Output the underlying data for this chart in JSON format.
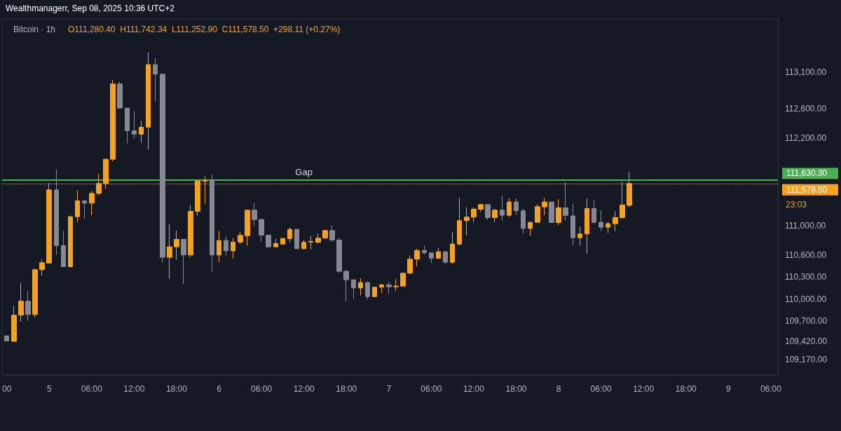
{
  "chart_data": {
    "type": "candlestick",
    "title": "Bitcoin · 1h",
    "subtitle": "O111,280.40  H111,742.34  L111,252.90  C111,578.50  +298.11 (+0.27%)",
    "annotations": [
      "Wealthmanagerr, Sep 08, 2025 10:36 UTC+2",
      "23:03",
      {
        "text": "Gap",
        "x": "2025-09-06T12:00",
        "y": 111630.3
      }
    ],
    "x": [
      "2025-09-04T18:00",
      "2025-09-04T19:00",
      "2025-09-04T20:00",
      "2025-09-04T21:00",
      "2025-09-04T22:00",
      "2025-09-04T23:00",
      "2025-09-05T00:00",
      "2025-09-05T01:00",
      "2025-09-05T02:00",
      "2025-09-05T03:00",
      "2025-09-05T04:00",
      "2025-09-05T05:00",
      "2025-09-05T06:00",
      "2025-09-05T07:00",
      "2025-09-05T08:00",
      "2025-09-05T09:00",
      "2025-09-05T10:00",
      "2025-09-05T11:00",
      "2025-09-05T12:00",
      "2025-09-05T13:00",
      "2025-09-05T14:00",
      "2025-09-05T15:00",
      "2025-09-05T16:00",
      "2025-09-05T17:00",
      "2025-09-05T18:00",
      "2025-09-05T19:00",
      "2025-09-05T20:00",
      "2025-09-05T21:00",
      "2025-09-05T22:00",
      "2025-09-05T23:00",
      "2025-09-06T00:00",
      "2025-09-06T01:00",
      "2025-09-06T02:00",
      "2025-09-06T03:00",
      "2025-09-06T04:00",
      "2025-09-06T05:00",
      "2025-09-06T06:00",
      "2025-09-06T07:00",
      "2025-09-06T08:00",
      "2025-09-06T09:00",
      "2025-09-06T10:00",
      "2025-09-06T11:00",
      "2025-09-06T12:00",
      "2025-09-06T13:00",
      "2025-09-06T14:00",
      "2025-09-06T15:00",
      "2025-09-06T16:00",
      "2025-09-06T17:00",
      "2025-09-06T18:00",
      "2025-09-06T19:00",
      "2025-09-06T20:00",
      "2025-09-06T21:00",
      "2025-09-06T22:00",
      "2025-09-06T23:00",
      "2025-09-07T00:00",
      "2025-09-07T01:00",
      "2025-09-07T02:00",
      "2025-09-07T03:00",
      "2025-09-07T04:00",
      "2025-09-07T05:00",
      "2025-09-07T06:00",
      "2025-09-07T07:00",
      "2025-09-07T08:00",
      "2025-09-07T09:00",
      "2025-09-07T10:00",
      "2025-09-07T11:00",
      "2025-09-07T12:00",
      "2025-09-07T13:00",
      "2025-09-07T14:00",
      "2025-09-07T15:00",
      "2025-09-07T16:00",
      "2025-09-07T17:00",
      "2025-09-07T18:00",
      "2025-09-07T19:00",
      "2025-09-07T20:00",
      "2025-09-07T21:00",
      "2025-09-07T22:00",
      "2025-09-07T23:00",
      "2025-09-08T00:00",
      "2025-09-08T01:00",
      "2025-09-08T02:00",
      "2025-09-08T03:00",
      "2025-09-08T04:00",
      "2025-09-08T05:00",
      "2025-09-08T06:00",
      "2025-09-08T07:00",
      "2025-09-08T08:00",
      "2025-09-08T09:00",
      "2025-09-08T10:00"
    ],
    "ohlc": [
      [
        109495,
        109500,
        109420,
        109425
      ],
      [
        109419,
        109905,
        109419,
        109777
      ],
      [
        109777,
        110218,
        109687,
        109968
      ],
      [
        109968,
        110102,
        109697,
        109786
      ],
      [
        109786,
        110410,
        109745,
        110400
      ],
      [
        110400,
        110543,
        110320,
        110495
      ],
      [
        110490,
        111588,
        110485,
        111492
      ],
      [
        111492,
        111773,
        110601,
        110729
      ],
      [
        110729,
        110933,
        110435,
        110441
      ],
      [
        110441,
        111135,
        110430,
        111125
      ],
      [
        111125,
        111486,
        111048,
        111342
      ],
      [
        111342,
        111345,
        111103,
        111310
      ],
      [
        111310,
        111476,
        111144,
        111444
      ],
      [
        111444,
        111710,
        111416,
        111579
      ],
      [
        111579,
        111915,
        111508,
        111911
      ],
      [
        111911,
        112997,
        111885,
        112940
      ],
      [
        112940,
        112972,
        112605,
        112611
      ],
      [
        112611,
        112611,
        112125,
        112301
      ],
      [
        112301,
        112572,
        112198,
        112253
      ],
      [
        112253,
        112435,
        112135,
        112349
      ],
      [
        112349,
        113371,
        112039,
        113205
      ],
      [
        113205,
        113298,
        112700,
        113074
      ],
      [
        113074,
        113080,
        110495,
        110569
      ],
      [
        110569,
        111023,
        110272,
        110713
      ],
      [
        110713,
        110933,
        110537,
        110815
      ],
      [
        110815,
        110815,
        110198,
        110601
      ],
      [
        110601,
        111285,
        110569,
        111198
      ],
      [
        111198,
        111620,
        111135,
        111614
      ],
      [
        111610,
        111678,
        111304,
        111620
      ],
      [
        111630,
        111700,
        110368,
        110601
      ],
      [
        110601,
        110927,
        110502,
        110799
      ],
      [
        110799,
        110857,
        110595,
        110658
      ],
      [
        110658,
        110831,
        110553,
        110777
      ],
      [
        110777,
        110920,
        110751,
        110869
      ],
      [
        110865,
        111220,
        110729,
        111214
      ],
      [
        111214,
        111310,
        111000,
        111087
      ],
      [
        111087,
        111087,
        110783,
        110873
      ],
      [
        110873,
        110873,
        110694,
        110713
      ],
      [
        110713,
        110821,
        110709,
        110758
      ],
      [
        110750,
        110831,
        110747,
        110828
      ],
      [
        110825,
        110975,
        110774,
        110952
      ],
      [
        110952,
        110955,
        110684,
        110687
      ],
      [
        110687,
        110806,
        110678,
        110774
      ],
      [
        110777,
        110863,
        110678,
        110786
      ],
      [
        110774,
        110895,
        110758,
        110831
      ],
      [
        110831,
        110943,
        110825,
        110936
      ],
      [
        110936,
        111004,
        110783,
        110806
      ],
      [
        110806,
        110837,
        110358,
        110377
      ],
      [
        110377,
        110400,
        109968,
        110262
      ],
      [
        110262,
        110262,
        109994,
        110150
      ],
      [
        110150,
        110281,
        110048,
        110224
      ],
      [
        110224,
        110240,
        109994,
        110032
      ],
      [
        110032,
        110165,
        110023,
        110160
      ],
      [
        110160,
        110208,
        110080,
        110192
      ],
      [
        110192,
        110233,
        110071,
        110166
      ],
      [
        110166,
        110272,
        110112,
        110176
      ],
      [
        110176,
        110358,
        110170,
        110352
      ],
      [
        110352,
        110591,
        110336,
        110543
      ],
      [
        110543,
        110687,
        110448,
        110662
      ],
      [
        110662,
        110729,
        110607,
        110630
      ],
      [
        110630,
        110630,
        110489,
        110556
      ],
      [
        110556,
        110697,
        110543,
        110646
      ],
      [
        110646,
        110646,
        110480,
        110502
      ],
      [
        110502,
        110911,
        110480,
        110751
      ],
      [
        110751,
        111381,
        110729,
        111071
      ],
      [
        111071,
        111253,
        110869,
        111119
      ],
      [
        111119,
        111253,
        111048,
        111227
      ],
      [
        111227,
        111294,
        111192,
        111291
      ],
      [
        111291,
        111294,
        111080,
        111112
      ],
      [
        111112,
        111230,
        111048,
        111214
      ],
      [
        111214,
        111413,
        111071,
        111144
      ],
      [
        111144,
        111381,
        111125,
        111326
      ],
      [
        111326,
        111374,
        111151,
        111205
      ],
      [
        111205,
        111237,
        110895,
        110965
      ],
      [
        110965,
        111055,
        110863,
        111048
      ],
      [
        111048,
        111294,
        111045,
        111262
      ],
      [
        111259,
        111381,
        111144,
        111326
      ],
      [
        111326,
        111330,
        111039,
        111045
      ],
      [
        111045,
        111365,
        111007,
        111246
      ],
      [
        111246,
        111598,
        111071,
        111141
      ],
      [
        111135,
        111301,
        110735,
        110837
      ],
      [
        110837,
        110991,
        110729,
        110889
      ],
      [
        110889,
        111374,
        110623,
        111237
      ],
      [
        111237,
        111352,
        111029,
        111048
      ],
      [
        111048,
        111214,
        110927,
        110981
      ],
      [
        110981,
        111055,
        110901,
        111029
      ],
      [
        111029,
        111198,
        110927,
        111112
      ],
      [
        111112,
        111604,
        111103,
        111285
      ],
      [
        111280.4,
        111742.34,
        111252.9,
        111578.5
      ]
    ],
    "colors": [
      "#868993",
      "#f7a21b",
      "#f7a21b",
      "#868993",
      "#f7a21b",
      "#f7a21b",
      "#f7a21b",
      "#868993",
      "#868993",
      "#f7a21b",
      "#f7a21b",
      "#868993",
      "#f7a21b",
      "#f7a21b",
      "#f7a21b",
      "#f7a21b",
      "#868993",
      "#868993",
      "#868993",
      "#f7a21b",
      "#f7a21b",
      "#868993",
      "#868993",
      "#f7a21b",
      "#f7a21b",
      "#868993",
      "#f7a21b",
      "#f7a21b",
      "#f7a21b",
      "#868993",
      "#f7a21b",
      "#868993",
      "#f7a21b",
      "#f7a21b",
      "#f7a21b",
      "#868993",
      "#868993",
      "#868993",
      "#f7a21b",
      "#f7a21b",
      "#f7a21b",
      "#868993",
      "#f7a21b",
      "#f7a21b",
      "#f7a21b",
      "#f7a21b",
      "#868993",
      "#868993",
      "#868993",
      "#868993",
      "#f7a21b",
      "#868993",
      "#f7a21b",
      "#f7a21b",
      "#868993",
      "#f7a21b",
      "#f7a21b",
      "#f7a21b",
      "#f7a21b",
      "#868993",
      "#868993",
      "#f7a21b",
      "#868993",
      "#f7a21b",
      "#f7a21b",
      "#f7a21b",
      "#f7a21b",
      "#f7a21b",
      "#868993",
      "#f7a21b",
      "#868993",
      "#f7a21b",
      "#868993",
      "#868993",
      "#f7a21b",
      "#f7a21b",
      "#f7a21b",
      "#868993",
      "#f7a21b",
      "#868993",
      "#868993",
      "#f7a21b",
      "#f7a21b",
      "#868993",
      "#868993",
      "#f7a21b",
      "#f7a21b",
      "#f7a21b",
      "#f7a21b"
    ],
    "xlim": [
      "2025-09-04T17:20",
      "2025-09-09T07:00"
    ],
    "xticks": [
      {
        "value": "2025-09-04T18:00",
        "label": "00"
      },
      {
        "value": "2025-09-05T00:00",
        "label": "5"
      },
      {
        "value": "2025-09-05T06:00",
        "label": "06:00"
      },
      {
        "value": "2025-09-05T12:00",
        "label": "12:00"
      },
      {
        "value": "2025-09-05T18:00",
        "label": "18:00"
      },
      {
        "value": "2025-09-06T00:00",
        "label": "6"
      },
      {
        "value": "2025-09-06T06:00",
        "label": "06:00"
      },
      {
        "value": "2025-09-06T12:00",
        "label": "12:00"
      },
      {
        "value": "2025-09-06T18:00",
        "label": "18:00"
      },
      {
        "value": "2025-09-07T00:00",
        "label": "7"
      },
      {
        "value": "2025-09-07T06:00",
        "label": "06:00"
      },
      {
        "value": "2025-09-07T12:00",
        "label": "12:00"
      },
      {
        "value": "2025-09-07T18:00",
        "label": "18:00"
      },
      {
        "value": "2025-09-08T00:00",
        "label": "8"
      },
      {
        "value": "2025-09-08T06:00",
        "label": "06:00"
      },
      {
        "value": "2025-09-08T12:00",
        "label": "12:00"
      },
      {
        "value": "2025-09-08T18:00",
        "label": "18:00"
      },
      {
        "value": "2025-09-09T00:00",
        "label": "9"
      },
      {
        "value": "2025-09-09T06:00",
        "label": "06:00"
      }
    ],
    "ylim": [
      108960,
      113830
    ],
    "yticks": [
      {
        "value": 109170,
        "label": "109,170.00"
      },
      {
        "value": 109420,
        "label": "109,420.00"
      },
      {
        "value": 109700,
        "label": "109,700.00"
      },
      {
        "value": 110000,
        "label": "110,000.00"
      },
      {
        "value": 110300,
        "label": "110,300.00"
      },
      {
        "value": 110600,
        "label": "110,600.00"
      },
      {
        "value": 111000,
        "label": "111,000.00"
      },
      {
        "value": 112200,
        "label": "112,200.00"
      },
      {
        "value": 112600,
        "label": "112,600.00"
      },
      {
        "value": 113100,
        "label": "113,100.00"
      }
    ],
    "ref_lines": [
      {
        "axis": "y",
        "value": 111630.3,
        "label": "111,630.30",
        "color": "#4caf50",
        "line_style": "solid"
      },
      {
        "axis": "y",
        "value": 111578.5,
        "label": "111,578.50",
        "color": "#f7a21b",
        "line_style": "dotted"
      }
    ]
  }
}
